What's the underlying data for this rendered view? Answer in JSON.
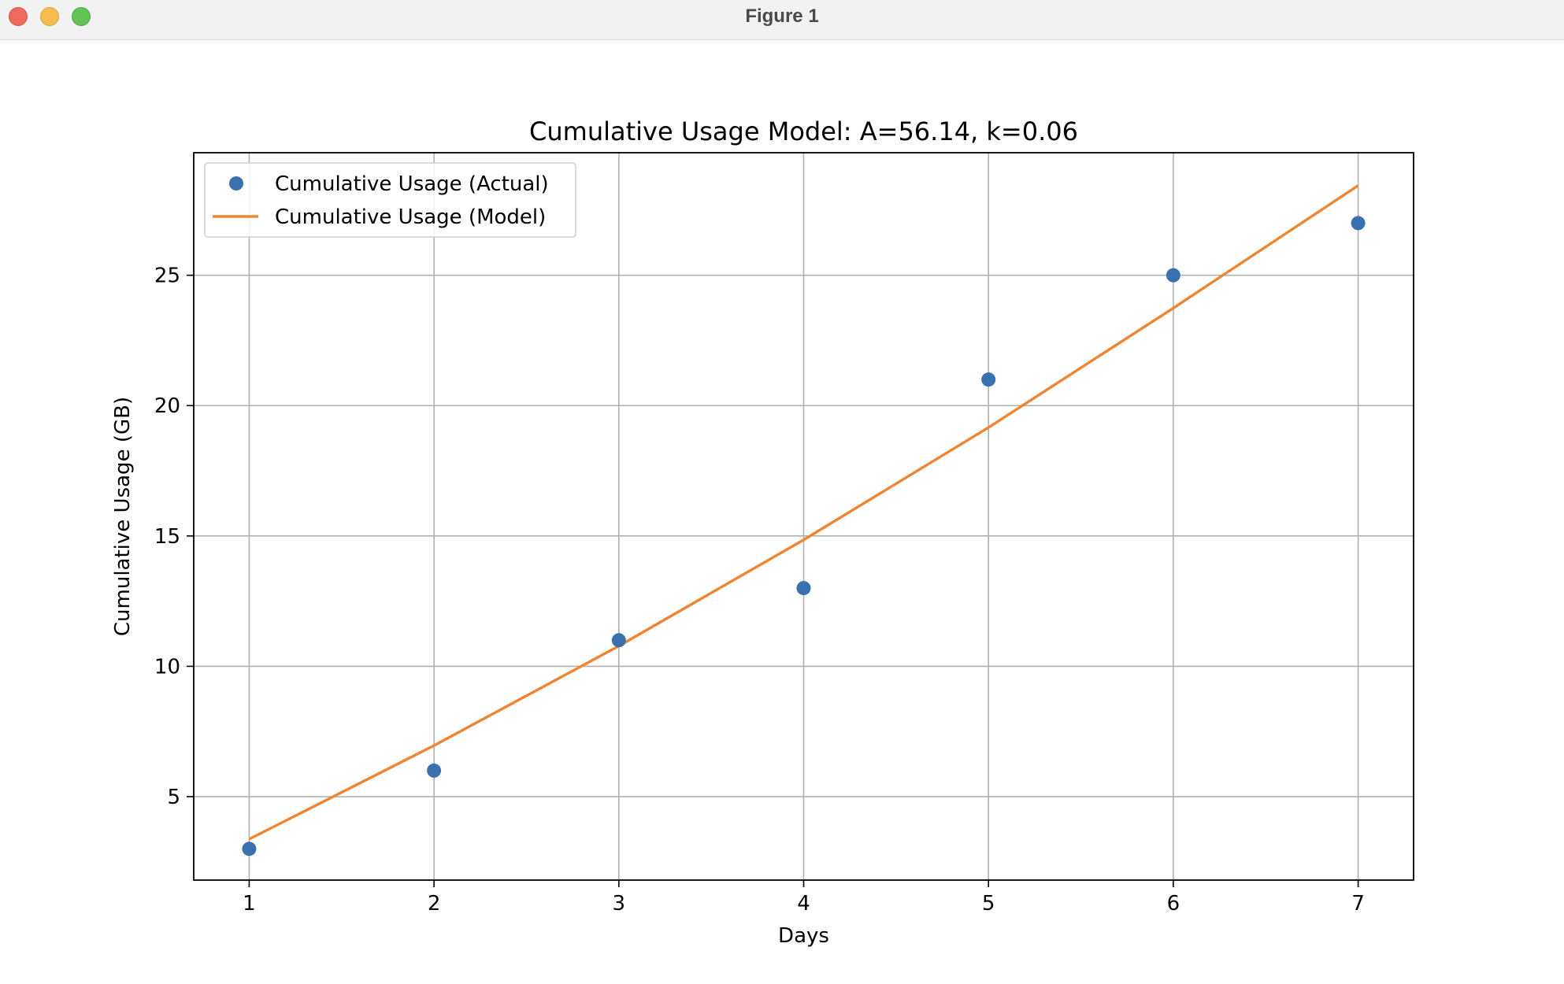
{
  "window": {
    "title": "Figure 1",
    "buttons": [
      "close",
      "minimize",
      "zoom"
    ]
  },
  "chart_data": {
    "type": "scatter",
    "title": "Cumulative Usage Model: A=56.14, k=0.06",
    "xlabel": "Days",
    "ylabel": "Cumulative Usage (GB)",
    "xlim": [
      0.7,
      7.3
    ],
    "ylim": [
      1.8,
      29.7
    ],
    "xticks": [
      1,
      2,
      3,
      4,
      5,
      6,
      7
    ],
    "yticks": [
      5,
      10,
      15,
      20,
      25
    ],
    "grid": true,
    "legend_position": "top-left",
    "series": [
      {
        "name": "Cumulative Usage (Actual)",
        "kind": "markers",
        "color": "#3a70b0",
        "x": [
          1,
          2,
          3,
          4,
          5,
          6,
          7
        ],
        "y": [
          3,
          6,
          11,
          13,
          21,
          25,
          27
        ]
      },
      {
        "name": "Cumulative Usage (Model)",
        "kind": "line",
        "color": "#ee8533",
        "x": [
          1,
          2,
          3,
          4,
          5,
          6,
          7
        ],
        "y": [
          3.37,
          6.96,
          10.78,
          14.85,
          19.16,
          23.74,
          28.44
        ]
      }
    ]
  }
}
